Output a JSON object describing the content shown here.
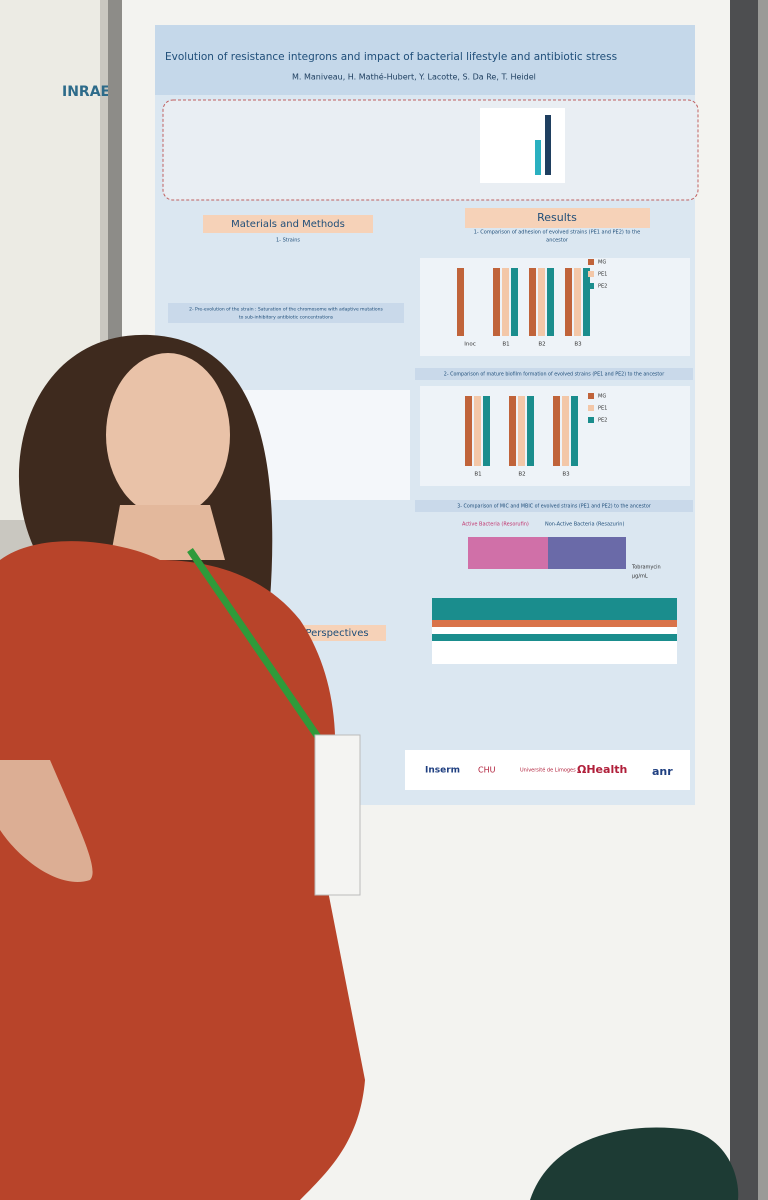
{
  "poster": {
    "title": "Evolution of resistance integrons and impact of bacterial lifestyle and antibiotic stress",
    "authors": "M. Maniveau, H. Mathé-Hubert, Y. Lacotte, S. Da Re, T. Heidel",
    "sections": {
      "methods": "Materials and Methods",
      "results": "Results",
      "perspectives": "Perspectives"
    },
    "methods_headings": [
      "1- Strains",
      "2- Pre-evolution of the strain : Saturation of the chromosome with adaptive mutations",
      "to sub-inhibitory antibiotic concentrations"
    ],
    "results_headings": [
      "1- Comparison of adhesion of evolved strains (PE1 and PE2) to the",
      "ancestor",
      "2- Comparison of mature biofilm formation of evolved strains (PE1 and PE2) to the ancestor",
      "3- Comparison of MIC and MBIC of evolved strains (PE1 and PE2) to the ancestor"
    ],
    "legend": [
      "MG",
      "PE1",
      "PE2"
    ],
    "fig4_categories": [
      "Inoc",
      "B1",
      "B2",
      "B3"
    ],
    "fig5_categories": [
      "B1",
      "B2",
      "B3"
    ],
    "resazurin": [
      "Active Bacteria (Resorufin)",
      "Non-Active Bacteria (Resazurin)"
    ],
    "tobramycin": [
      "Tobramycin",
      "µg/mL"
    ],
    "logos": [
      "Inserm",
      "CHU",
      "Université de Limoges",
      "ΩHealth",
      "anr"
    ]
  },
  "left_poster": {
    "logo": "INRAE"
  }
}
